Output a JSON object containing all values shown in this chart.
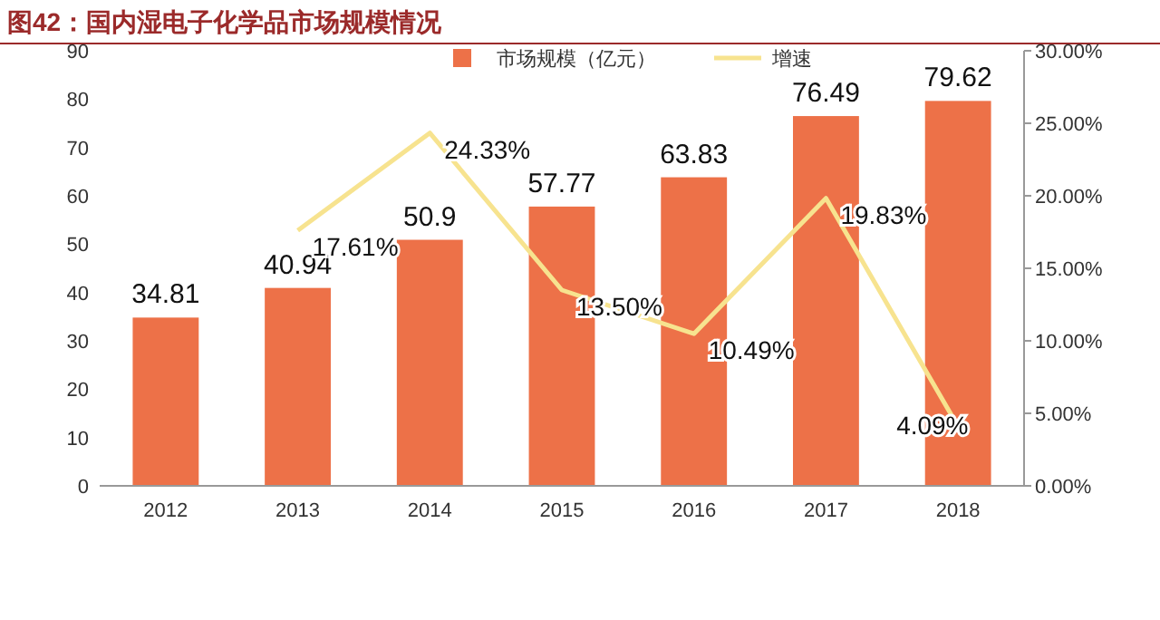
{
  "chart_data": {
    "type": "bar",
    "title": "图42：国内湿电子化学品市场规模情况",
    "categories": [
      "2012",
      "2013",
      "2014",
      "2015",
      "2016",
      "2017",
      "2018"
    ],
    "series": [
      {
        "name": "市场规模（亿元）",
        "color": "#ed7148",
        "values": [
          34.81,
          40.94,
          50.9,
          57.77,
          63.83,
          76.49,
          79.62
        ],
        "value_labels": [
          "34.81",
          "40.94",
          "50.9",
          "57.77",
          "63.83",
          "76.49",
          "79.62"
        ]
      },
      {
        "name": "增速",
        "type": "line",
        "axis": "y2",
        "color": "#f7e38f",
        "values": [
          null,
          17.61,
          24.33,
          13.5,
          10.49,
          19.83,
          4.09
        ],
        "value_labels": [
          null,
          "17.61%",
          "24.33%",
          "13.50%",
          "10.49%",
          "19.83%",
          "4.09%"
        ]
      }
    ],
    "ylim": [
      0,
      90
    ],
    "yticks": [
      0,
      10,
      20,
      30,
      40,
      50,
      60,
      70,
      80,
      90
    ],
    "y2lim": [
      0,
      30
    ],
    "y2ticks": [
      {
        "value": 0,
        "label": "0.00%"
      },
      {
        "value": 5,
        "label": "5.00%"
      },
      {
        "value": 10,
        "label": "10.00%"
      },
      {
        "value": 15,
        "label": "15.00%"
      },
      {
        "value": 20,
        "label": "20.00%"
      },
      {
        "value": 25,
        "label": "25.00%"
      },
      {
        "value": 30,
        "label": "30.00%"
      }
    ],
    "legend": "top",
    "grid": false,
    "marker": "none"
  }
}
